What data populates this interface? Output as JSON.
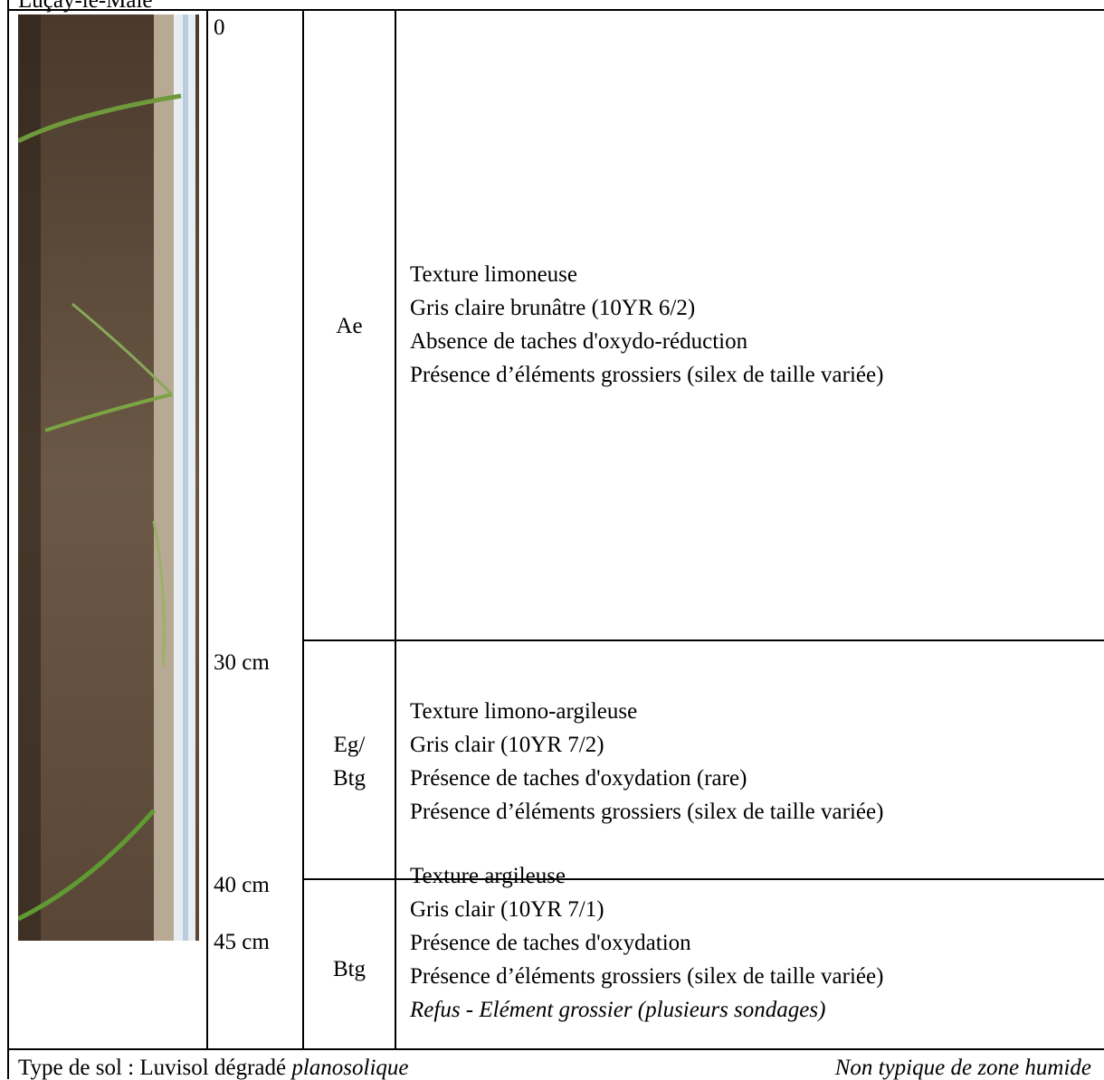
{
  "header": {
    "title": "Luçay-le-Mâle"
  },
  "depths": [
    "0",
    "30 cm",
    "40 cm",
    "45 cm"
  ],
  "horizons": [
    {
      "name": "Ae",
      "lines": [
        "Texture limoneuse",
        "Gris claire brunâtre (10YR 6/2)",
        "Absence de taches d'oxydo-réduction",
        "Présence d’éléments grossiers (silex de taille variée)"
      ]
    },
    {
      "name": [
        "Eg/",
        "Btg"
      ],
      "lines": [
        "Texture limono-argileuse",
        "Gris clair (10YR 7/2)",
        "Présence de taches d'oxydation (rare)",
        "Présence d’éléments grossiers (silex de taille variée)"
      ]
    },
    {
      "name": "Btg",
      "lines": [
        "Texture argileuse",
        "Gris clair (10YR 7/1)",
        "Présence de taches d'oxydation",
        "Présence d’éléments grossiers (silex de taille variée)"
      ],
      "note": "Refus - Elément grossier (plusieurs sondages)"
    }
  ],
  "footer": {
    "soil_type": "Type de sol : Luvisol dégradé",
    "soil_qualifier": "planosolique",
    "conclusion": "Non typique de zone humide"
  }
}
